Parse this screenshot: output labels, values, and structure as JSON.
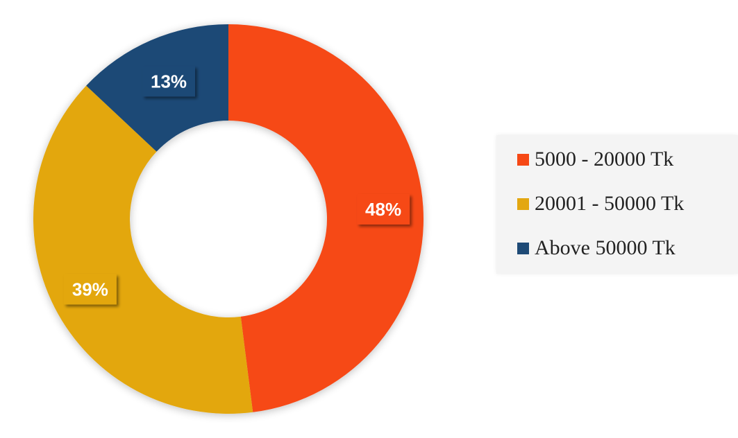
{
  "chart_data": {
    "type": "pie",
    "variant": "donut",
    "title": "",
    "categories": [
      "5000 - 20000 Tk",
      "20001 - 50000 Tk",
      "Above 50000 Tk"
    ],
    "values": [
      48,
      39,
      13
    ],
    "value_labels": [
      "48%",
      "39%",
      "13%"
    ],
    "colors": [
      "#f64815",
      "#e3a711",
      "#1e4a76"
    ],
    "legend": {
      "placement": "right",
      "entries": [
        "5000 - 20000 Tk",
        "20001 - 50000 Tk",
        "Above 50000 Tk"
      ]
    }
  }
}
